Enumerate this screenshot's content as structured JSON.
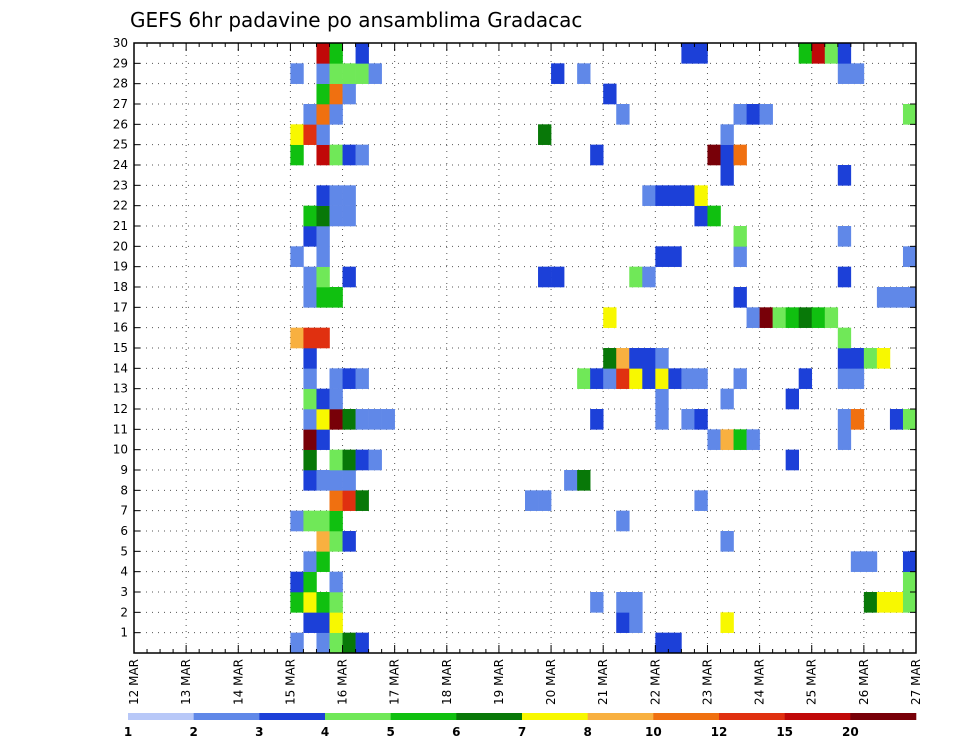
{
  "chart_data": {
    "type": "heatmap",
    "title": "GEFS 6hr padavine po ansamblima Gradacac",
    "x_tick_labels": [
      "12 MAR",
      "13 MAR",
      "14 MAR",
      "15 MAR",
      "16 MAR",
      "17 MAR",
      "18 MAR",
      "19 MAR",
      "20 MAR",
      "21 MAR",
      "22 MAR",
      "23 MAR",
      "24 MAR",
      "25 MAR",
      "26 MAR",
      "27 MAR"
    ],
    "y_tick_labels": [
      "1",
      "2",
      "3",
      "4",
      "5",
      "6",
      "7",
      "8",
      "9",
      "10",
      "11",
      "12",
      "13",
      "14",
      "15",
      "16",
      "17",
      "18",
      "19",
      "20",
      "21",
      "22",
      "23",
      "24",
      "25",
      "26",
      "27",
      "28",
      "29",
      "30"
    ],
    "xlim_days": [
      0,
      15
    ],
    "ylim_members": [
      0,
      30
    ],
    "grid": "dotted",
    "colorbar": {
      "labels": [
        "1",
        "2",
        "3",
        "4",
        "5",
        "6",
        "7",
        "8",
        "10",
        "12",
        "15",
        "20"
      ],
      "colors": [
        "#b8c8f8",
        "#6088e8",
        "#1c40d8",
        "#70e858",
        "#10c010",
        "#087808",
        "#f8f800",
        "#f8b040",
        "#f07010",
        "#e03010",
        "#c00808",
        "#780008"
      ]
    },
    "cells": [
      [
        3.0,
        0,
        1
      ],
      [
        3.5,
        0,
        1
      ],
      [
        3.75,
        0,
        3
      ],
      [
        4.0,
        0,
        5
      ],
      [
        4.25,
        0,
        2
      ],
      [
        10.0,
        0,
        2
      ],
      [
        10.25,
        0,
        2
      ],
      [
        3.25,
        1,
        2
      ],
      [
        3.5,
        1,
        2
      ],
      [
        3.75,
        1,
        6
      ],
      [
        9.25,
        1,
        2
      ],
      [
        9.5,
        1,
        1
      ],
      [
        11.25,
        1,
        6
      ],
      [
        3.0,
        2,
        4
      ],
      [
        3.25,
        2,
        6
      ],
      [
        3.5,
        2,
        4
      ],
      [
        3.75,
        2,
        3
      ],
      [
        8.75,
        2,
        1
      ],
      [
        9.25,
        2,
        1
      ],
      [
        9.5,
        2,
        1
      ],
      [
        14.0,
        2,
        5
      ],
      [
        14.25,
        2,
        6
      ],
      [
        14.5,
        2,
        6
      ],
      [
        14.75,
        2,
        3
      ],
      [
        15.0,
        2,
        7
      ],
      [
        3.0,
        3,
        2
      ],
      [
        3.25,
        3,
        4
      ],
      [
        3.75,
        3,
        1
      ],
      [
        14.75,
        3,
        3
      ],
      [
        3.25,
        4,
        1
      ],
      [
        3.5,
        4,
        4
      ],
      [
        13.75,
        4,
        1
      ],
      [
        14.0,
        4,
        1
      ],
      [
        14.75,
        4,
        2
      ],
      [
        15.0,
        4,
        1
      ],
      [
        3.5,
        5,
        7
      ],
      [
        3.75,
        5,
        3
      ],
      [
        4.0,
        5,
        2
      ],
      [
        11.25,
        5,
        1
      ],
      [
        3.0,
        6,
        1
      ],
      [
        3.25,
        6,
        3
      ],
      [
        3.5,
        6,
        3
      ],
      [
        3.75,
        6,
        4
      ],
      [
        9.25,
        6,
        1
      ],
      [
        3.75,
        7,
        8
      ],
      [
        4.0,
        7,
        9
      ],
      [
        4.25,
        7,
        5
      ],
      [
        7.5,
        7,
        1
      ],
      [
        7.75,
        7,
        1
      ],
      [
        10.75,
        7,
        1
      ],
      [
        3.25,
        8,
        2
      ],
      [
        3.5,
        8,
        1
      ],
      [
        3.75,
        8,
        1
      ],
      [
        4.0,
        8,
        1
      ],
      [
        8.25,
        8,
        1
      ],
      [
        8.5,
        8,
        5
      ],
      [
        3.25,
        9,
        5
      ],
      [
        3.75,
        9,
        3
      ],
      [
        4.0,
        9,
        5
      ],
      [
        4.25,
        9,
        2
      ],
      [
        4.5,
        9,
        1
      ],
      [
        12.5,
        9,
        2
      ],
      [
        3.25,
        10,
        11
      ],
      [
        3.5,
        10,
        2
      ],
      [
        11.0,
        10,
        1
      ],
      [
        11.25,
        10,
        7
      ],
      [
        11.5,
        10,
        4
      ],
      [
        11.75,
        10,
        1
      ],
      [
        13.5,
        10,
        1
      ],
      [
        15.0,
        10,
        1
      ],
      [
        3.25,
        11,
        1
      ],
      [
        3.5,
        11,
        6
      ],
      [
        3.75,
        11,
        11
      ],
      [
        4.0,
        11,
        5
      ],
      [
        4.25,
        11,
        1
      ],
      [
        4.5,
        11,
        1
      ],
      [
        4.75,
        11,
        1
      ],
      [
        8.75,
        11,
        2
      ],
      [
        10.0,
        11,
        1
      ],
      [
        10.5,
        11,
        1
      ],
      [
        10.75,
        11,
        2
      ],
      [
        13.5,
        11,
        1
      ],
      [
        13.75,
        11,
        8
      ],
      [
        14.5,
        11,
        2
      ],
      [
        14.75,
        11,
        3
      ],
      [
        15.0,
        11,
        4
      ],
      [
        3.25,
        12,
        3
      ],
      [
        3.5,
        12,
        2
      ],
      [
        3.75,
        12,
        1
      ],
      [
        10.0,
        12,
        1
      ],
      [
        11.25,
        12,
        1
      ],
      [
        12.5,
        12,
        2
      ],
      [
        3.25,
        13,
        1
      ],
      [
        3.75,
        13,
        1
      ],
      [
        4.0,
        13,
        2
      ],
      [
        4.25,
        13,
        1
      ],
      [
        8.5,
        13,
        3
      ],
      [
        8.75,
        13,
        2
      ],
      [
        9.0,
        13,
        1
      ],
      [
        9.25,
        13,
        9
      ],
      [
        9.5,
        13,
        6
      ],
      [
        9.75,
        13,
        2
      ],
      [
        10.0,
        13,
        6
      ],
      [
        10.25,
        13,
        2
      ],
      [
        10.5,
        13,
        1
      ],
      [
        10.75,
        13,
        1
      ],
      [
        11.5,
        13,
        1
      ],
      [
        12.75,
        13,
        2
      ],
      [
        13.5,
        13,
        1
      ],
      [
        13.75,
        13,
        1
      ],
      [
        3.25,
        14,
        2
      ],
      [
        9.0,
        14,
        5
      ],
      [
        9.25,
        14,
        7
      ],
      [
        9.5,
        14,
        2
      ],
      [
        9.75,
        14,
        2
      ],
      [
        10.0,
        14,
        1
      ],
      [
        13.5,
        14,
        2
      ],
      [
        13.75,
        14,
        2
      ],
      [
        14.0,
        14,
        3
      ],
      [
        14.25,
        14,
        6
      ],
      [
        3.0,
        15,
        7
      ],
      [
        3.25,
        15,
        9
      ],
      [
        3.5,
        15,
        9
      ],
      [
        13.5,
        15,
        3
      ],
      [
        9.0,
        16,
        6
      ],
      [
        11.75,
        16,
        1
      ],
      [
        12.0,
        16,
        11
      ],
      [
        12.25,
        16,
        3
      ],
      [
        12.5,
        16,
        4
      ],
      [
        12.75,
        16,
        5
      ],
      [
        13.0,
        16,
        4
      ],
      [
        13.25,
        16,
        3
      ],
      [
        3.25,
        17,
        1
      ],
      [
        3.5,
        17,
        4
      ],
      [
        3.75,
        17,
        4
      ],
      [
        11.5,
        17,
        2
      ],
      [
        14.25,
        17,
        1
      ],
      [
        14.5,
        17,
        1
      ],
      [
        14.75,
        17,
        1
      ],
      [
        15.0,
        17,
        1
      ],
      [
        3.25,
        18,
        1
      ],
      [
        3.5,
        18,
        3
      ],
      [
        4.0,
        18,
        2
      ],
      [
        7.75,
        18,
        2
      ],
      [
        8.0,
        18,
        2
      ],
      [
        9.5,
        18,
        3
      ],
      [
        9.75,
        18,
        1
      ],
      [
        13.5,
        18,
        2
      ],
      [
        3.0,
        19,
        1
      ],
      [
        3.5,
        19,
        1
      ],
      [
        10.0,
        19,
        2
      ],
      [
        10.25,
        19,
        2
      ],
      [
        11.5,
        19,
        1
      ],
      [
        14.75,
        19,
        1
      ],
      [
        3.25,
        20,
        2
      ],
      [
        3.5,
        20,
        1
      ],
      [
        11.5,
        20,
        3
      ],
      [
        13.5,
        20,
        1
      ],
      [
        3.25,
        21,
        4
      ],
      [
        3.5,
        21,
        5
      ],
      [
        3.75,
        21,
        1
      ],
      [
        4.0,
        21,
        1
      ],
      [
        10.75,
        21,
        2
      ],
      [
        11.0,
        21,
        4
      ],
      [
        3.5,
        22,
        2
      ],
      [
        3.75,
        22,
        1
      ],
      [
        4.0,
        22,
        1
      ],
      [
        9.75,
        22,
        1
      ],
      [
        10.0,
        22,
        2
      ],
      [
        10.25,
        22,
        2
      ],
      [
        10.5,
        22,
        2
      ],
      [
        10.75,
        22,
        6
      ],
      [
        11.25,
        23,
        2
      ],
      [
        13.5,
        23,
        2
      ],
      [
        3.0,
        24,
        4
      ],
      [
        3.5,
        24,
        10
      ],
      [
        3.75,
        24,
        3
      ],
      [
        4.0,
        24,
        2
      ],
      [
        4.25,
        24,
        1
      ],
      [
        8.75,
        24,
        2
      ],
      [
        11.0,
        24,
        11
      ],
      [
        11.25,
        24,
        2
      ],
      [
        11.5,
        24,
        8
      ],
      [
        3.0,
        25,
        6
      ],
      [
        3.25,
        25,
        9
      ],
      [
        3.5,
        25,
        1
      ],
      [
        7.75,
        25,
        5
      ],
      [
        11.25,
        25,
        1
      ],
      [
        3.25,
        26,
        1
      ],
      [
        3.5,
        26,
        8
      ],
      [
        3.75,
        26,
        1
      ],
      [
        9.25,
        26,
        1
      ],
      [
        11.5,
        26,
        1
      ],
      [
        11.75,
        26,
        2
      ],
      [
        12.0,
        26,
        1
      ],
      [
        14.75,
        26,
        3
      ],
      [
        15.0,
        26,
        1
      ],
      [
        3.5,
        27,
        4
      ],
      [
        3.75,
        27,
        8
      ],
      [
        4.0,
        27,
        1
      ],
      [
        9.0,
        27,
        2
      ],
      [
        15.0,
        27,
        2
      ],
      [
        3.0,
        28,
        1
      ],
      [
        3.5,
        28,
        1
      ],
      [
        3.75,
        28,
        3
      ],
      [
        4.0,
        28,
        3
      ],
      [
        4.25,
        28,
        3
      ],
      [
        4.5,
        28,
        1
      ],
      [
        8.0,
        28,
        2
      ],
      [
        8.5,
        28,
        1
      ],
      [
        13.5,
        28,
        1
      ],
      [
        13.75,
        28,
        1
      ],
      [
        3.5,
        29,
        10
      ],
      [
        3.75,
        29,
        4
      ],
      [
        4.25,
        29,
        2
      ],
      [
        10.5,
        29,
        2
      ],
      [
        10.75,
        29,
        2
      ],
      [
        12.75,
        29,
        4
      ],
      [
        13.0,
        29,
        10
      ],
      [
        13.25,
        29,
        3
      ],
      [
        13.5,
        29,
        2
      ]
    ]
  }
}
